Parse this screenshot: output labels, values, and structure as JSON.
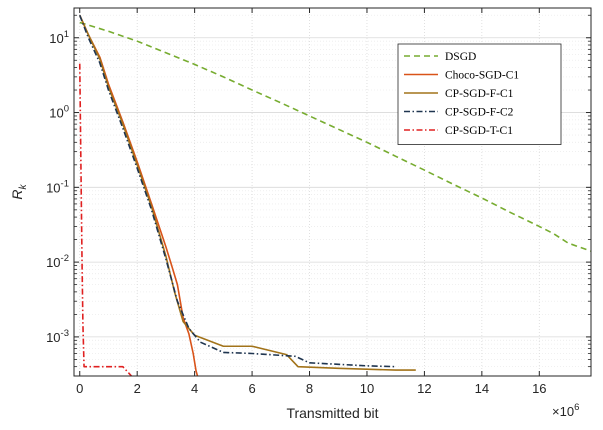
{
  "chart_data": {
    "type": "line",
    "xlabel": "Transmitted bit",
    "ylabel": "R_k",
    "x_multiplier_label": "×10",
    "x_multiplier_exponent": "6",
    "xlim": [
      -0.2,
      17.8
    ],
    "ylim": [
      0.0003,
      25
    ],
    "y_scale": "log",
    "grid": true,
    "legend_position": "top-right",
    "x_ticks": [
      0,
      2,
      4,
      6,
      8,
      10,
      12,
      14,
      16
    ],
    "x_tick_labels": [
      "0",
      "2",
      "4",
      "6",
      "8",
      "10",
      "12",
      "14",
      "16"
    ],
    "y_ticks": [
      0.001,
      0.01,
      0.1,
      1,
      10
    ],
    "y_tick_labels": [
      {
        "base": "10",
        "exp": "-3"
      },
      {
        "base": "10",
        "exp": "-2"
      },
      {
        "base": "10",
        "exp": "-1"
      },
      {
        "base": "10",
        "exp": "0"
      },
      {
        "base": "10",
        "exp": "1"
      }
    ],
    "series": [
      {
        "name": "DSGD",
        "color": "#77AC30",
        "dash": "6,4",
        "points": [
          [
            0,
            16
          ],
          [
            0.3,
            14.8
          ],
          [
            1,
            12.2
          ],
          [
            2,
            9.0
          ],
          [
            3,
            6.3
          ],
          [
            4,
            4.4
          ],
          [
            5,
            3.0
          ],
          [
            6,
            2.0
          ],
          [
            7,
            1.35
          ],
          [
            8,
            0.9
          ],
          [
            9,
            0.6
          ],
          [
            10,
            0.4
          ],
          [
            11,
            0.26
          ],
          [
            12,
            0.17
          ],
          [
            13,
            0.11
          ],
          [
            14,
            0.072
          ],
          [
            15,
            0.046
          ],
          [
            16,
            0.03
          ],
          [
            16.5,
            0.024
          ],
          [
            17,
            0.018
          ],
          [
            17.8,
            0.014
          ]
        ]
      },
      {
        "name": "Choco-SGD-C1",
        "color": "#D95319",
        "dash": "",
        "points": [
          [
            0,
            20
          ],
          [
            0.3,
            11
          ],
          [
            0.7,
            5.5
          ],
          [
            1,
            2.4
          ],
          [
            1.5,
            0.75
          ],
          [
            2,
            0.22
          ],
          [
            2.5,
            0.06
          ],
          [
            3,
            0.016
          ],
          [
            3.2,
            0.009
          ],
          [
            3.4,
            0.005
          ],
          [
            3.6,
            0.0018
          ],
          [
            3.8,
            0.0011
          ],
          [
            3.95,
            0.0006
          ],
          [
            4.05,
            0.00035
          ],
          [
            4.1,
            0.0003
          ]
        ]
      },
      {
        "name": "CP-SGD-F-C1",
        "color": "#A2731A",
        "dash": "",
        "points": [
          [
            0,
            20
          ],
          [
            0.3,
            11
          ],
          [
            0.7,
            5.2
          ],
          [
            1,
            2.2
          ],
          [
            1.5,
            0.7
          ],
          [
            2,
            0.2
          ],
          [
            2.5,
            0.055
          ],
          [
            3,
            0.012
          ],
          [
            3.3,
            0.004
          ],
          [
            3.6,
            0.0016
          ],
          [
            4,
            0.00105
          ],
          [
            5,
            0.00075
          ],
          [
            6,
            0.00075
          ],
          [
            7.2,
            0.00058
          ],
          [
            7.6,
            0.0004
          ],
          [
            9,
            0.00038
          ],
          [
            11,
            0.00036
          ],
          [
            11.7,
            0.00036
          ]
        ]
      },
      {
        "name": "CP-SGD-F-C2",
        "color": "#1F3550",
        "dash": "6,2.5,1.5,2.5",
        "points": [
          [
            0,
            20
          ],
          [
            0.3,
            10
          ],
          [
            0.7,
            4.6
          ],
          [
            1,
            2.0
          ],
          [
            1.5,
            0.62
          ],
          [
            2,
            0.18
          ],
          [
            2.5,
            0.05
          ],
          [
            3,
            0.011
          ],
          [
            3.4,
            0.003
          ],
          [
            3.8,
            0.0013
          ],
          [
            4.2,
            0.00085
          ],
          [
            5,
            0.00062
          ],
          [
            6,
            0.0006
          ],
          [
            7.5,
            0.00055
          ],
          [
            8,
            0.00045
          ],
          [
            9,
            0.00043
          ],
          [
            10,
            0.00041
          ],
          [
            11,
            0.0004
          ]
        ]
      },
      {
        "name": "CP-SGD-T-C1",
        "color": "#E02020",
        "dash": "6,2.5,1.5,2.5",
        "points": [
          [
            0,
            4.5
          ],
          [
            0.02,
            1.0
          ],
          [
            0.05,
            0.1
          ],
          [
            0.08,
            0.01
          ],
          [
            0.11,
            0.0015
          ],
          [
            0.15,
            0.0004
          ],
          [
            0.5,
            0.0004
          ],
          [
            1.5,
            0.0004
          ],
          [
            1.8,
            0.0003
          ]
        ]
      }
    ]
  }
}
